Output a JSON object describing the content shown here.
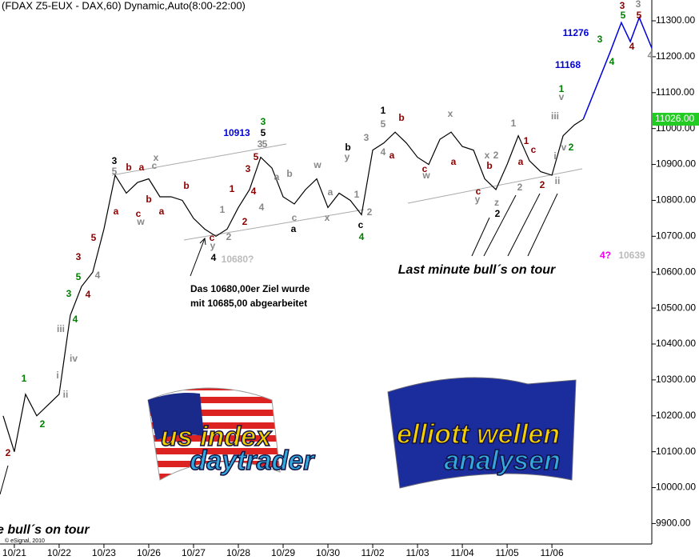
{
  "chart_data": {
    "type": "line",
    "title": "(FDAX Z5-EUX - DAX,60) Dynamic,Auto(8:00-22:00)",
    "copyright": "© eSignal, 2010",
    "xlim": [
      -0.32,
      14.23
    ],
    "xticks": [
      {
        "value": 0,
        "label": "10/21"
      },
      {
        "value": 1,
        "label": "10/22"
      },
      {
        "value": 2,
        "label": "10/23"
      },
      {
        "value": 3,
        "label": "10/26"
      },
      {
        "value": 4,
        "label": "10/27"
      },
      {
        "value": 5,
        "label": "10/28"
      },
      {
        "value": 6,
        "label": "10/29"
      },
      {
        "value": 7,
        "label": "10/30"
      },
      {
        "value": 8,
        "label": "11/02"
      },
      {
        "value": 9,
        "label": "11/03"
      },
      {
        "value": 10,
        "label": "11/04"
      },
      {
        "value": 11,
        "label": "11/05"
      },
      {
        "value": 12,
        "label": "11/06"
      }
    ],
    "ylim": [
      9843,
      11358
    ],
    "yticks": [
      {
        "value": 9900,
        "label": "9900.00"
      },
      {
        "value": 10000,
        "label": "10000.00"
      },
      {
        "value": 10100,
        "label": "10100.00"
      },
      {
        "value": 10200,
        "label": "10200.00"
      },
      {
        "value": 10300,
        "label": "10300.00"
      },
      {
        "value": 10400,
        "label": "10400.00"
      },
      {
        "value": 10500,
        "label": "10500.00"
      },
      {
        "value": 10600,
        "label": "10600.00"
      },
      {
        "value": 10700,
        "label": "10700.00"
      },
      {
        "value": 10800,
        "label": "10800.00"
      },
      {
        "value": 10900,
        "label": "10900.00"
      },
      {
        "value": 11000,
        "label": "11000.00"
      },
      {
        "value": 11100,
        "label": "11100.00"
      },
      {
        "value": 11200,
        "label": "11200.00"
      },
      {
        "value": 11300,
        "label": "11300.00"
      }
    ],
    "last_price": {
      "value": 11026,
      "label": "11026.00"
    },
    "series": [
      {
        "name": "FDAX Z5",
        "color": "#000000",
        "x": [
          -0.25,
          0,
          0.25,
          0.5,
          0.75,
          1,
          1.25,
          1.5,
          1.75,
          2,
          2.25,
          2.5,
          2.75,
          3,
          3.25,
          3.5,
          3.75,
          4,
          4.25,
          4.5,
          4.75,
          5,
          5.25,
          5.5,
          5.75,
          6,
          6.25,
          6.5,
          6.75,
          7,
          7.25,
          7.5,
          7.75,
          8,
          8.25,
          8.5,
          8.75,
          9,
          9.25,
          9.5,
          9.75,
          10,
          10.25,
          10.5,
          10.75,
          11,
          11.25,
          11.5,
          11.75,
          12,
          12.25,
          12.5,
          12.7
        ],
        "values": [
          10200,
          10100,
          10260,
          10200,
          10230,
          10260,
          10480,
          10560,
          10600,
          10720,
          10870,
          10820,
          10850,
          10860,
          10810,
          10810,
          10800,
          10750,
          10720,
          10700,
          10720,
          10780,
          10830,
          10920,
          10890,
          10810,
          10790,
          10830,
          10860,
          10780,
          10820,
          10800,
          10760,
          10940,
          10960,
          10990,
          10960,
          10920,
          10900,
          10970,
          10990,
          10950,
          10940,
          10860,
          10830,
          10900,
          10980,
          10910,
          10880,
          10870,
          10980,
          11010,
          11026
        ]
      },
      {
        "name": "Projection",
        "color": "#0000dd",
        "x": [
          12.7,
          13.3,
          13.55,
          13.75,
          13.95,
          14.23
        ],
        "values": [
          11026,
          11213,
          11295,
          11242,
          11309,
          11224
        ]
      }
    ],
    "annotations": [
      {
        "text": "2",
        "color": "#8b0000"
      },
      {
        "text": "1",
        "color": "#008000"
      },
      {
        "text": "2",
        "color": "#008000"
      },
      {
        "text": "i",
        "color": "#888888"
      },
      {
        "text": "ii",
        "color": "#888888"
      },
      {
        "text": "iii",
        "color": "#888888"
      },
      {
        "text": "iv",
        "color": "#888888"
      },
      {
        "text": "3",
        "color": "#008000"
      },
      {
        "text": "4",
        "color": "#008000"
      },
      {
        "text": "5",
        "color": "#008000"
      },
      {
        "text": "3",
        "color": "#8b0000"
      },
      {
        "text": "4",
        "color": "#8b0000"
      },
      {
        "text": "4",
        "color": "#888888"
      },
      {
        "text": "5",
        "color": "#8b0000"
      },
      {
        "text": "3",
        "color": "#000000"
      },
      {
        "text": "5",
        "color": "#888888"
      },
      {
        "text": "a",
        "color": "#8b0000"
      },
      {
        "text": "b",
        "color": "#8b0000"
      },
      {
        "text": "a",
        "color": "#8b0000"
      },
      {
        "text": "c",
        "color": "#8b0000"
      },
      {
        "text": "w",
        "color": "#888888"
      },
      {
        "text": "x",
        "color": "#888888"
      },
      {
        "text": "c",
        "color": "#888888"
      },
      {
        "text": "b",
        "color": "#8b0000"
      },
      {
        "text": "a",
        "color": "#8b0000"
      },
      {
        "text": "b",
        "color": "#8b0000"
      },
      {
        "text": "c",
        "color": "#8b0000"
      },
      {
        "text": "y",
        "color": "#888888"
      },
      {
        "text": "4",
        "color": "#000000"
      },
      {
        "text": "10680?",
        "color": "#bbbbbb"
      },
      {
        "text": "1",
        "color": "#888888"
      },
      {
        "text": "2",
        "color": "#888888"
      },
      {
        "text": "1",
        "color": "#8b0000"
      },
      {
        "text": "2",
        "color": "#8b0000"
      },
      {
        "text": "3",
        "color": "#8b0000"
      },
      {
        "text": "4",
        "color": "#8b0000"
      },
      {
        "text": "4",
        "color": "#888888"
      },
      {
        "text": "5",
        "color": "#8b0000"
      },
      {
        "text": "3",
        "color": "#888888"
      },
      {
        "text": "5",
        "color": "#888888"
      },
      {
        "text": "3",
        "color": "#008000"
      },
      {
        "text": "5",
        "color": "#000000"
      },
      {
        "text": "10913",
        "color": "#0000dd"
      },
      {
        "text": "a",
        "color": "#888888"
      },
      {
        "text": "b",
        "color": "#888888"
      },
      {
        "text": "c",
        "color": "#888888"
      },
      {
        "text": "a",
        "color": "#000000"
      },
      {
        "text": "w",
        "color": "#888888"
      },
      {
        "text": "x",
        "color": "#888888"
      },
      {
        "text": "a",
        "color": "#888888"
      },
      {
        "text": "b",
        "color": "#000000"
      },
      {
        "text": "y",
        "color": "#888888"
      },
      {
        "text": "1",
        "color": "#888888"
      },
      {
        "text": "2",
        "color": "#888888"
      },
      {
        "text": "c",
        "color": "#000000"
      },
      {
        "text": "4",
        "color": "#008000"
      },
      {
        "text": "3",
        "color": "#888888"
      },
      {
        "text": "4",
        "color": "#888888"
      },
      {
        "text": "a",
        "color": "#8b0000"
      },
      {
        "text": "1",
        "color": "#000000"
      },
      {
        "text": "5",
        "color": "#888888"
      },
      {
        "text": "b",
        "color": "#8b0000"
      },
      {
        "text": "c",
        "color": "#8b0000"
      },
      {
        "text": "w",
        "color": "#888888"
      },
      {
        "text": "x",
        "color": "#888888"
      },
      {
        "text": "a",
        "color": "#8b0000"
      },
      {
        "text": "b",
        "color": "#8b0000"
      },
      {
        "text": "x",
        "color": "#888888"
      },
      {
        "text": "2",
        "color": "#888888"
      },
      {
        "text": "c",
        "color": "#8b0000"
      },
      {
        "text": "y",
        "color": "#888888"
      },
      {
        "text": "z",
        "color": "#888888"
      },
      {
        "text": "2",
        "color": "#000000"
      },
      {
        "text": "1",
        "color": "#888888"
      },
      {
        "text": "1",
        "color": "#8b0000"
      },
      {
        "text": "a",
        "color": "#8b0000"
      },
      {
        "text": "c",
        "color": "#8b0000"
      },
      {
        "text": "2",
        "color": "#888888"
      },
      {
        "text": "2",
        "color": "#8b0000"
      },
      {
        "text": "ii",
        "color": "#888888"
      },
      {
        "text": "i",
        "color": "#888888"
      },
      {
        "text": "1",
        "color": "#008000"
      },
      {
        "text": "v",
        "color": "#888888"
      },
      {
        "text": "iii",
        "color": "#888888"
      },
      {
        "text": "v",
        "color": "#888888"
      },
      {
        "text": "2",
        "color": "#008000"
      },
      {
        "text": "11168",
        "color": "#0000dd"
      },
      {
        "text": "11276",
        "color": "#0000dd"
      },
      {
        "text": "3",
        "color": "#008000"
      },
      {
        "text": "4",
        "color": "#008000"
      },
      {
        "text": "3",
        "color": "#8b0000"
      },
      {
        "text": "5",
        "color": "#008000"
      },
      {
        "text": "4",
        "color": "#8b0000"
      },
      {
        "text": "3",
        "color": "#888888"
      },
      {
        "text": "5",
        "color": "#8b0000"
      },
      {
        "text": "4",
        "color": "#888888"
      },
      {
        "text": "4?",
        "color": "#ee00ee"
      },
      {
        "text": "10639",
        "color": "#bbbbbb"
      }
    ],
    "notes": [
      "Das 10680,00er Ziel wurde",
      "mit  10685,00 abgearbeitet",
      "Last minute bull´s on tour",
      "e bull´s on tour"
    ],
    "logos": [
      "us index",
      "daytrader",
      "elliott wellen",
      "analysen"
    ]
  }
}
